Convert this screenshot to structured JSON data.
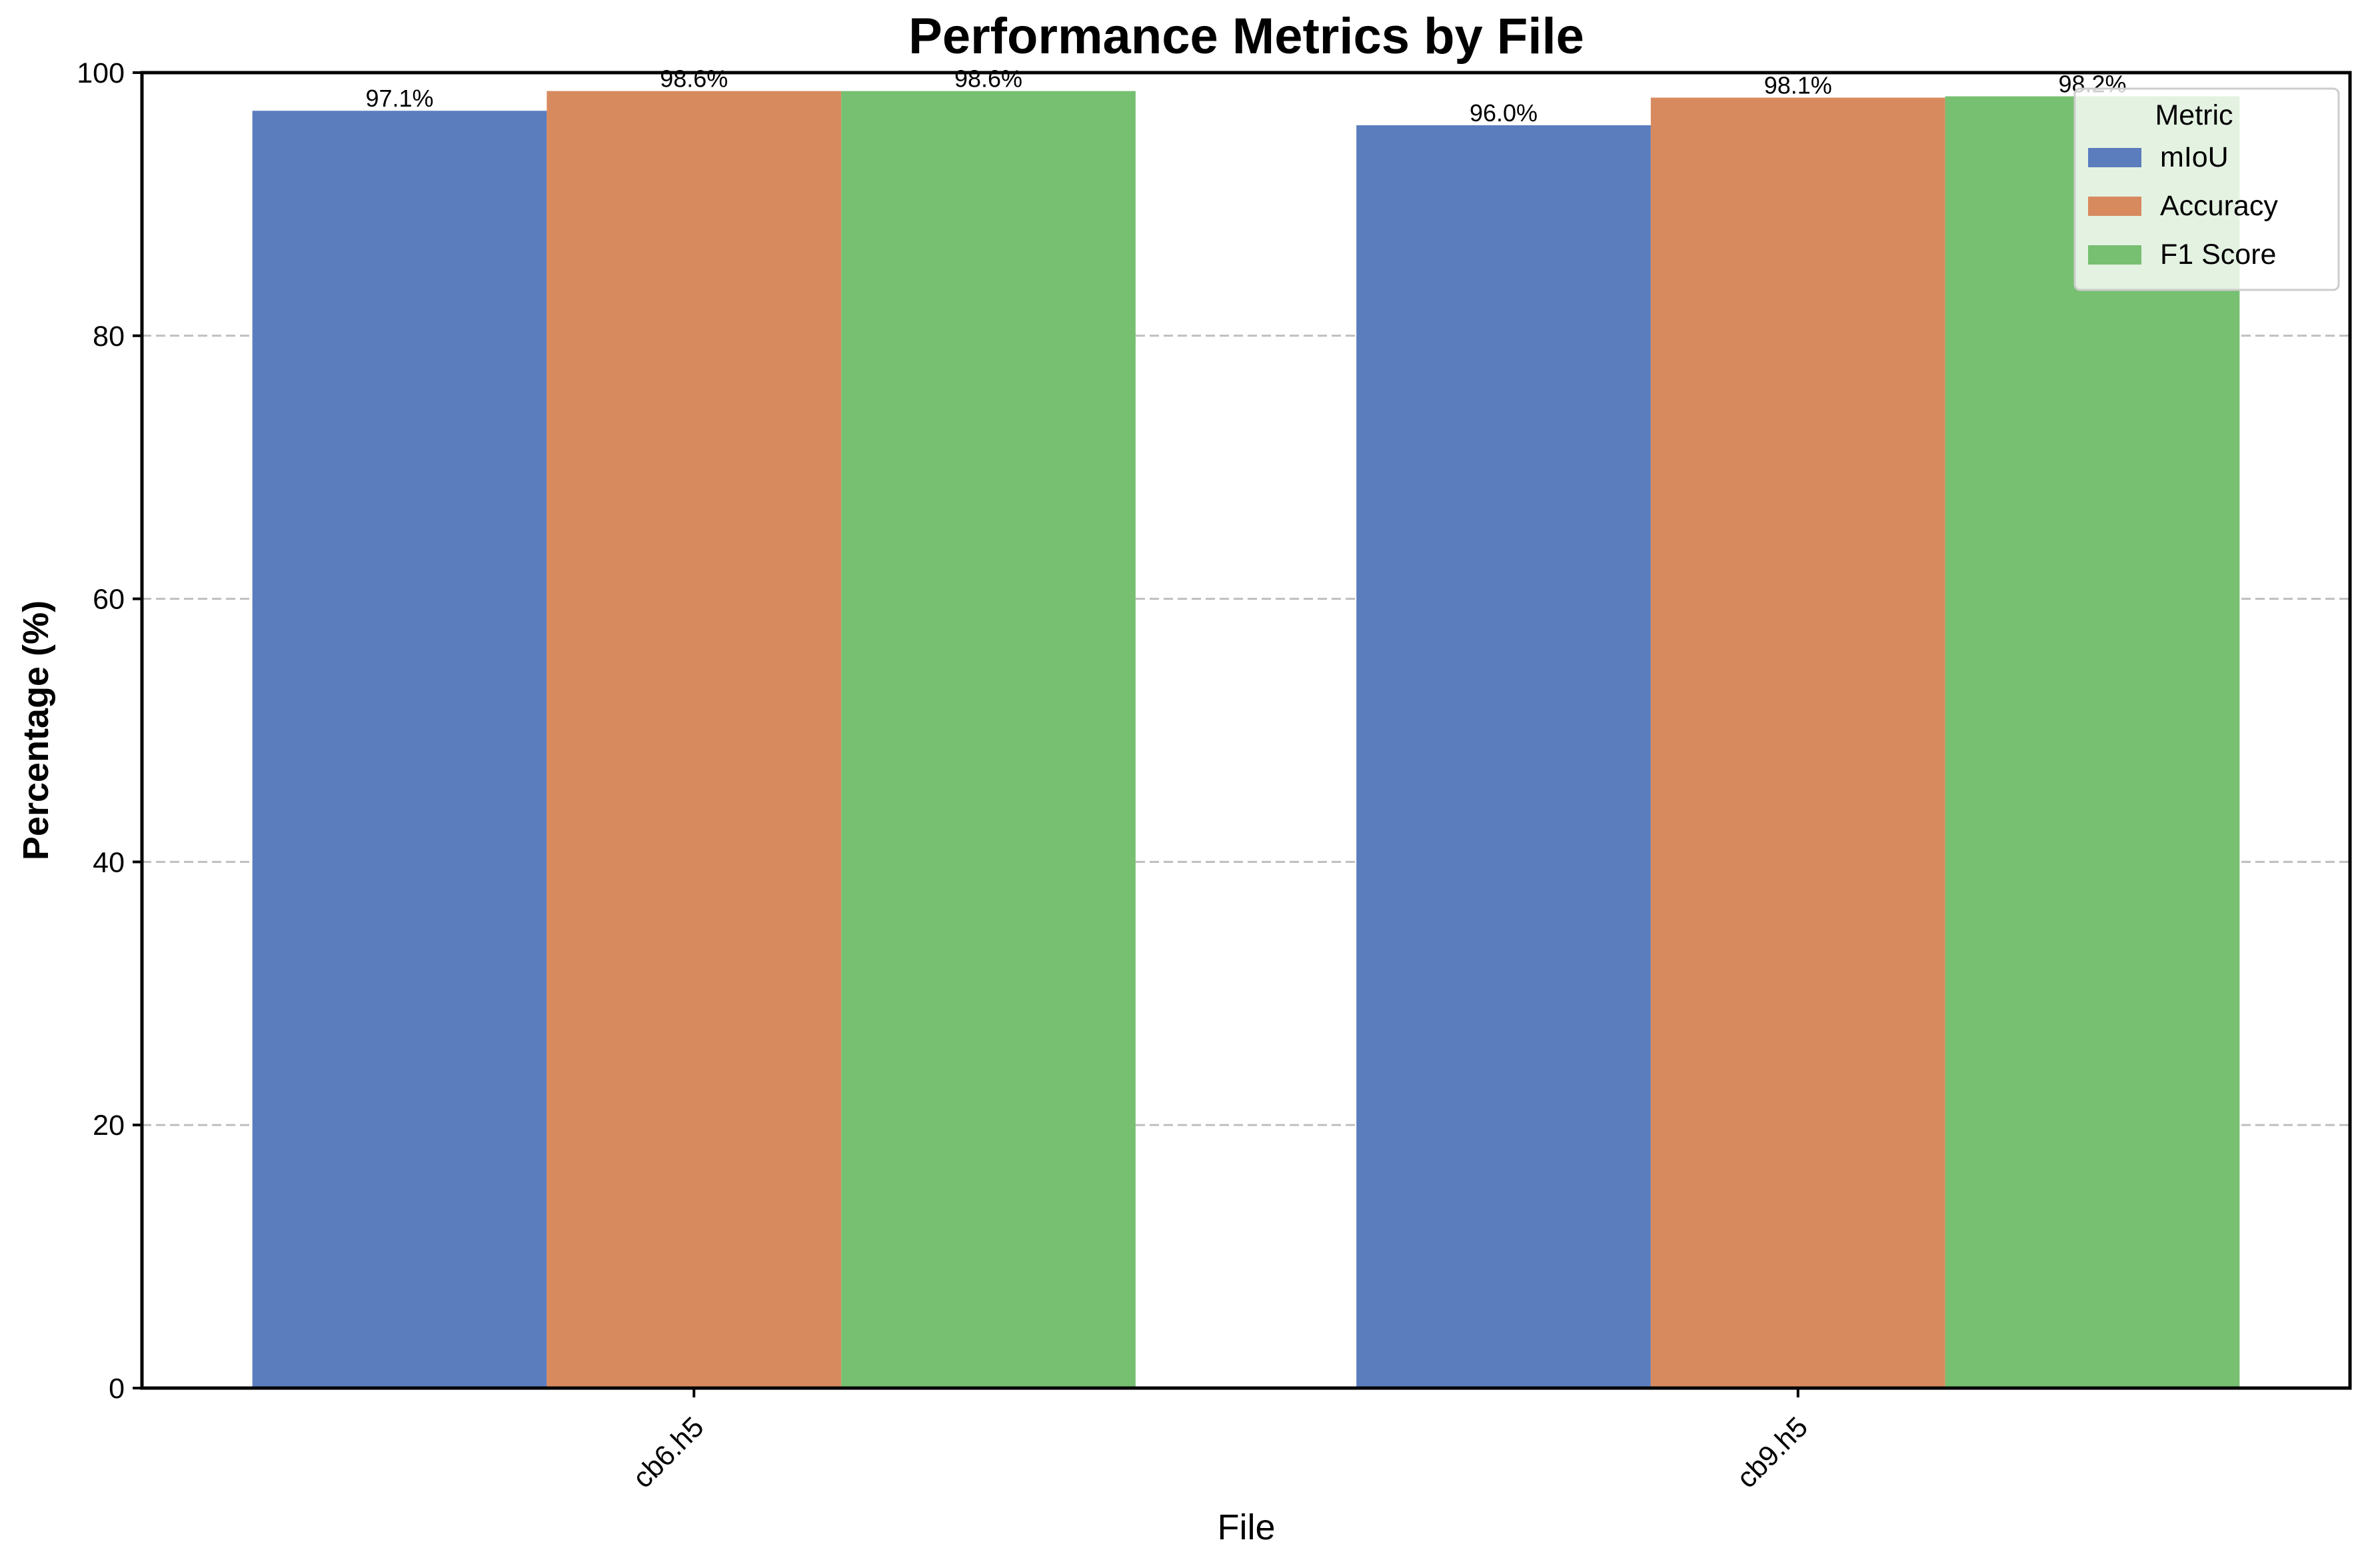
{
  "chart_data": {
    "type": "bar",
    "title": "Performance Metrics by File",
    "xlabel": "File",
    "ylabel": "Percentage (%)",
    "categories": [
      "cb6.h5",
      "cb9.h5"
    ],
    "series": [
      {
        "name": "mIoU",
        "values": [
          97.1,
          96.0
        ],
        "labels": [
          "97.1%",
          "96.0%"
        ],
        "color": "#5b7dbe"
      },
      {
        "name": "Accuracy",
        "values": [
          98.6,
          98.1
        ],
        "labels": [
          "98.6%",
          "98.1%"
        ],
        "color": "#d88a5f"
      },
      {
        "name": "F1 Score",
        "values": [
          98.6,
          98.2
        ],
        "labels": [
          "98.6%",
          "98.2%"
        ],
        "color": "#77bf71"
      }
    ],
    "ylim": [
      0,
      100
    ],
    "yticks": [
      0,
      20,
      40,
      60,
      80,
      100
    ],
    "ytick_labels": [
      "0",
      "20",
      "40",
      "60",
      "80",
      "100"
    ],
    "grid": "y-dashed",
    "legend": {
      "title": "Metric",
      "position": "upper-right"
    }
  }
}
